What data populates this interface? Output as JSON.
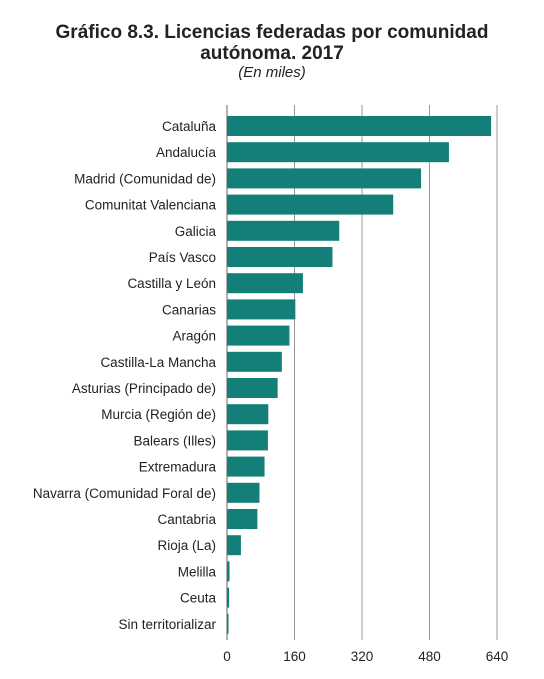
{
  "chart_data": {
    "type": "bar",
    "orientation": "horizontal",
    "title": "Gráfico 8.3. Licencias federadas por comunidad autónoma. 2017",
    "title_line1": "Gráfico 8.3. Licencias federadas por comunidad",
    "title_line2": "autónoma. 2017",
    "subtitle": "(En miles)",
    "xlabel": "",
    "ylabel": "",
    "xlim": [
      0,
      640
    ],
    "xticks": [
      0,
      160,
      320,
      480,
      640
    ],
    "grid": true,
    "bar_color": "#137F78",
    "categories": [
      "Cataluña",
      "Andalucía",
      "Madrid (Comunidad de)",
      "Comunitat Valenciana",
      "Galicia",
      "País Vasco",
      "Castilla y León",
      "Canarias",
      "Aragón",
      "Castilla-La Mancha",
      "Asturias (Principado de)",
      "Murcia (Región de)",
      "Balears (Illes)",
      "Extremadura",
      "Navarra (Comunidad Foral de)",
      "Cantabria",
      "Rioja (La)",
      "Melilla",
      "Ceuta",
      "Sin territorializar"
    ],
    "values": [
      626,
      526,
      460,
      394,
      266,
      250,
      180,
      162,
      148,
      130,
      120,
      98,
      97,
      89,
      77,
      72,
      33,
      6,
      5,
      2
    ]
  }
}
